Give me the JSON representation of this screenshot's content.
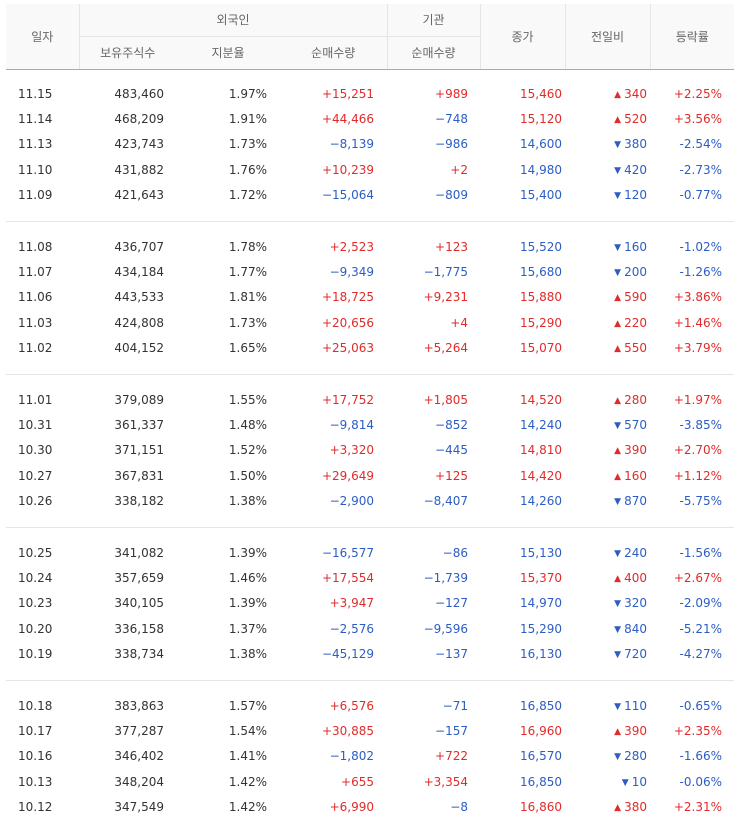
{
  "headers": {
    "date": "일자",
    "foreign": "외국인",
    "institution": "기관",
    "holdings": "보유주식수",
    "share": "지분율",
    "foreign_net": "순매수량",
    "inst_net": "순매수량",
    "close": "종가",
    "change": "전일비",
    "rate": "등락률"
  },
  "groups": [
    [
      {
        "date": "11.15",
        "holdings": "483,460",
        "share": "1.97%",
        "fnet": "+15,251",
        "inet": "+989",
        "close": "15,460",
        "dir": "up",
        "change": "340",
        "rate": "+2.25%"
      },
      {
        "date": "11.14",
        "holdings": "468,209",
        "share": "1.91%",
        "fnet": "+44,466",
        "inet": "−748",
        "close": "15,120",
        "dir": "up",
        "change": "520",
        "rate": "+3.56%"
      },
      {
        "date": "11.13",
        "holdings": "423,743",
        "share": "1.73%",
        "fnet": "−8,139",
        "inet": "−986",
        "close": "14,600",
        "dir": "down",
        "change": "380",
        "rate": "-2.54%"
      },
      {
        "date": "11.10",
        "holdings": "431,882",
        "share": "1.76%",
        "fnet": "+10,239",
        "inet": "+2",
        "close": "14,980",
        "dir": "down",
        "change": "420",
        "rate": "-2.73%"
      },
      {
        "date": "11.09",
        "holdings": "421,643",
        "share": "1.72%",
        "fnet": "−15,064",
        "inet": "−809",
        "close": "15,400",
        "dir": "down",
        "change": "120",
        "rate": "-0.77%"
      }
    ],
    [
      {
        "date": "11.08",
        "holdings": "436,707",
        "share": "1.78%",
        "fnet": "+2,523",
        "inet": "+123",
        "close": "15,520",
        "dir": "down",
        "change": "160",
        "rate": "-1.02%"
      },
      {
        "date": "11.07",
        "holdings": "434,184",
        "share": "1.77%",
        "fnet": "−9,349",
        "inet": "−1,775",
        "close": "15,680",
        "dir": "down",
        "change": "200",
        "rate": "-1.26%"
      },
      {
        "date": "11.06",
        "holdings": "443,533",
        "share": "1.81%",
        "fnet": "+18,725",
        "inet": "+9,231",
        "close": "15,880",
        "dir": "up",
        "change": "590",
        "rate": "+3.86%"
      },
      {
        "date": "11.03",
        "holdings": "424,808",
        "share": "1.73%",
        "fnet": "+20,656",
        "inet": "+4",
        "close": "15,290",
        "dir": "up",
        "change": "220",
        "rate": "+1.46%"
      },
      {
        "date": "11.02",
        "holdings": "404,152",
        "share": "1.65%",
        "fnet": "+25,063",
        "inet": "+5,264",
        "close": "15,070",
        "dir": "up",
        "change": "550",
        "rate": "+3.79%"
      }
    ],
    [
      {
        "date": "11.01",
        "holdings": "379,089",
        "share": "1.55%",
        "fnet": "+17,752",
        "inet": "+1,805",
        "close": "14,520",
        "dir": "up",
        "change": "280",
        "rate": "+1.97%"
      },
      {
        "date": "10.31",
        "holdings": "361,337",
        "share": "1.48%",
        "fnet": "−9,814",
        "inet": "−852",
        "close": "14,240",
        "dir": "down",
        "change": "570",
        "rate": "-3.85%"
      },
      {
        "date": "10.30",
        "holdings": "371,151",
        "share": "1.52%",
        "fnet": "+3,320",
        "inet": "−445",
        "close": "14,810",
        "dir": "up",
        "change": "390",
        "rate": "+2.70%"
      },
      {
        "date": "10.27",
        "holdings": "367,831",
        "share": "1.50%",
        "fnet": "+29,649",
        "inet": "+125",
        "close": "14,420",
        "dir": "up",
        "change": "160",
        "rate": "+1.12%"
      },
      {
        "date": "10.26",
        "holdings": "338,182",
        "share": "1.38%",
        "fnet": "−2,900",
        "inet": "−8,407",
        "close": "14,260",
        "dir": "down",
        "change": "870",
        "rate": "-5.75%"
      }
    ],
    [
      {
        "date": "10.25",
        "holdings": "341,082",
        "share": "1.39%",
        "fnet": "−16,577",
        "inet": "−86",
        "close": "15,130",
        "dir": "down",
        "change": "240",
        "rate": "-1.56%"
      },
      {
        "date": "10.24",
        "holdings": "357,659",
        "share": "1.46%",
        "fnet": "+17,554",
        "inet": "−1,739",
        "close": "15,370",
        "dir": "up",
        "change": "400",
        "rate": "+2.67%"
      },
      {
        "date": "10.23",
        "holdings": "340,105",
        "share": "1.39%",
        "fnet": "+3,947",
        "inet": "−127",
        "close": "14,970",
        "dir": "down",
        "change": "320",
        "rate": "-2.09%"
      },
      {
        "date": "10.20",
        "holdings": "336,158",
        "share": "1.37%",
        "fnet": "−2,576",
        "inet": "−9,596",
        "close": "15,290",
        "dir": "down",
        "change": "840",
        "rate": "-5.21%"
      },
      {
        "date": "10.19",
        "holdings": "338,734",
        "share": "1.38%",
        "fnet": "−45,129",
        "inet": "−137",
        "close": "16,130",
        "dir": "down",
        "change": "720",
        "rate": "-4.27%"
      }
    ],
    [
      {
        "date": "10.18",
        "holdings": "383,863",
        "share": "1.57%",
        "fnet": "+6,576",
        "inet": "−71",
        "close": "16,850",
        "dir": "down",
        "change": "110",
        "rate": "-0.65%"
      },
      {
        "date": "10.17",
        "holdings": "377,287",
        "share": "1.54%",
        "fnet": "+30,885",
        "inet": "−157",
        "close": "16,960",
        "dir": "up",
        "change": "390",
        "rate": "+2.35%"
      },
      {
        "date": "10.16",
        "holdings": "346,402",
        "share": "1.41%",
        "fnet": "−1,802",
        "inet": "+722",
        "close": "16,570",
        "dir": "down",
        "change": "280",
        "rate": "-1.66%"
      },
      {
        "date": "10.13",
        "holdings": "348,204",
        "share": "1.42%",
        "fnet": "+655",
        "inet": "+3,354",
        "close": "16,850",
        "dir": "down",
        "change": "10",
        "rate": "-0.06%"
      },
      {
        "date": "10.12",
        "holdings": "347,549",
        "share": "1.42%",
        "fnet": "+6,990",
        "inet": "−8",
        "close": "16,860",
        "dir": "up",
        "change": "380",
        "rate": "+2.31%"
      }
    ]
  ],
  "colors": {
    "up": "#e12b2b",
    "down": "#2c5dc5"
  },
  "icons": {
    "up": "triangle-up-icon",
    "down": "triangle-down-icon"
  }
}
